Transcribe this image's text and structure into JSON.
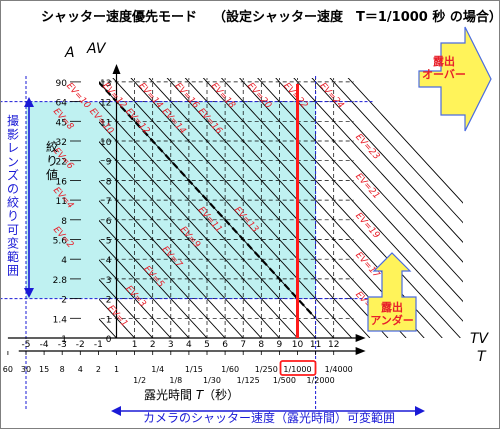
{
  "title": "シャッター速度優先モード",
  "subtitle": "（設定シャッター速度　T＝1/1000 秒 の場合）",
  "axes": {
    "a_symbol": "A",
    "av_symbol": "AV",
    "tv_symbol": "TV",
    "t_symbol": "T",
    "aperture_label": "絞り値",
    "time_label_prefix": "露光時間 ",
    "time_label_symbol": "T",
    "time_label_suffix": "（秒）"
  },
  "ranges": {
    "lens_range_label": "撮影レンズの絞り可変範囲",
    "camera_range_label": "カメラのシャッター速度（露光時間）可変範囲"
  },
  "av_ticks": [
    "0",
    "1",
    "2",
    "3",
    "4",
    "5",
    "6",
    "7",
    "8",
    "9",
    "10",
    "11",
    "12",
    "13"
  ],
  "f_numbers": [
    "1",
    "1.4",
    "2",
    "2.8",
    "4",
    "5.6",
    "8",
    "11",
    "16",
    "22",
    "32",
    "45",
    "64",
    "90"
  ],
  "tv_ticks": [
    "-5",
    "-4",
    "-3",
    "-2",
    "-1",
    "0",
    "1",
    "2",
    "3",
    "4",
    "5",
    "6",
    "7",
    "8",
    "9",
    "10",
    "11",
    "12"
  ],
  "time_top_labels": [
    "60",
    "30",
    "15",
    "8",
    "4",
    "2",
    "1",
    "1/2",
    "1/4",
    "1/8",
    "1/15",
    "1/30",
    "1/60",
    "1/125",
    "1/250",
    "1/500",
    "1/1000",
    "1/2000",
    "1/4000"
  ],
  "ev_upper": [
    "EV=10",
    "EV=12",
    "EV=14",
    "EV=16",
    "EV=18",
    "EV=20",
    "EV=22",
    "EV=24"
  ],
  "ev_right": [
    "EV=23",
    "EV=21",
    "EV=19",
    "EV=17",
    "EV=15"
  ],
  "ev_inside": [
    "EV=1",
    "EV=3",
    "EV=5",
    "EV=7",
    "EV=9",
    "EV=11",
    "EV=13",
    "EV=2",
    "EV=4",
    "EV=6",
    "EV=8",
    "EV=10",
    "EV=12",
    "EV=14",
    "EV=16"
  ],
  "setting": {
    "label": "1/1000",
    "tv": 10
  },
  "callouts": {
    "over": "露出\nオーバー",
    "under": "露出\nアンダー"
  },
  "colors": {
    "region_fill": "#bff1f1",
    "ev_text": "#e8202a",
    "setting_line": "#ff1a1a",
    "range_arrow": "#1a1ad6",
    "callout_fill": "#fff35a",
    "callout_stroke": "#4a6be0"
  }
}
